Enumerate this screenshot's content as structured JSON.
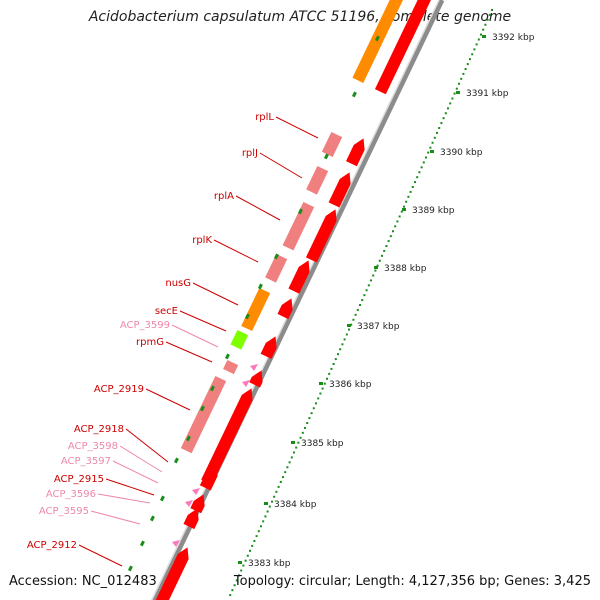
{
  "title": "Acidobacterium capsulatum ATCC 51196, complete genome",
  "accession": "Accession: NC_012483",
  "topology": "Topology: circular; Length: 4,127,356 bp; Genes: 3,425",
  "colors": {
    "backbone": "#8c8c8c",
    "gene_forward": "#ff0000",
    "gene_light": "#f08080",
    "gene_orange": "#ff8c00",
    "gene_green": "#7fff00",
    "gene_pink": "#ff77bb",
    "tick_green": "#1a8c1a",
    "label_red": "#cc0000",
    "label_pink": "#ee88aa"
  },
  "ticks": [
    "3392 kbp",
    "3391 kbp",
    "3390 kbp",
    "3389 kbp",
    "3388 kbp",
    "3387 kbp",
    "3386 kbp",
    "3385 kbp",
    "3384 kbp",
    "3383 kbp"
  ],
  "gene_labels": [
    {
      "text": "rplL",
      "color": "red"
    },
    {
      "text": "rplJ",
      "color": "red"
    },
    {
      "text": "rplA",
      "color": "red"
    },
    {
      "text": "rplK",
      "color": "red"
    },
    {
      "text": "nusG",
      "color": "red"
    },
    {
      "text": "secE",
      "color": "red"
    },
    {
      "text": "ACP_3599",
      "color": "pink"
    },
    {
      "text": "rpmG",
      "color": "red"
    },
    {
      "text": "ACP_2919",
      "color": "red"
    },
    {
      "text": "ACP_2918",
      "color": "red"
    },
    {
      "text": "ACP_3598",
      "color": "pink"
    },
    {
      "text": "ACP_3597",
      "color": "pink"
    },
    {
      "text": "ACP_2915",
      "color": "red"
    },
    {
      "text": "ACP_3596",
      "color": "pink"
    },
    {
      "text": "ACP_3595",
      "color": "pink"
    },
    {
      "text": "ACP_2912",
      "color": "red"
    }
  ]
}
